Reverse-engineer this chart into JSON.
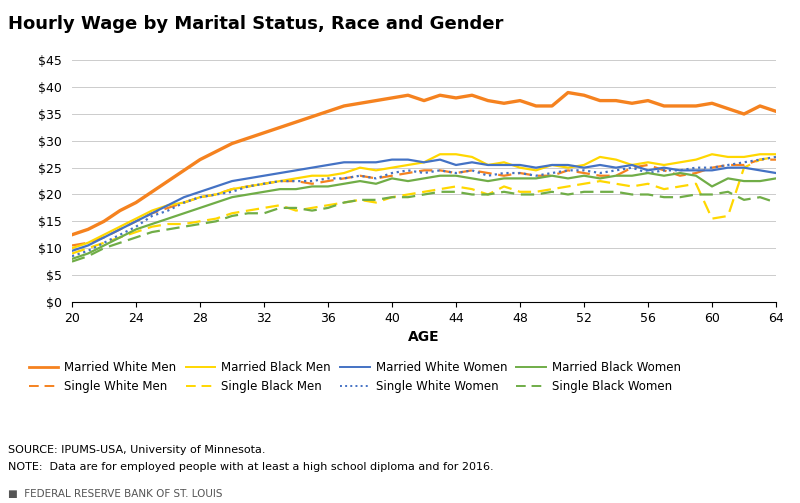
{
  "title": "Hourly Wage by Marital Status, Race and Gender",
  "xlabel": "AGE",
  "ages": [
    20,
    21,
    22,
    23,
    24,
    25,
    26,
    27,
    28,
    29,
    30,
    31,
    32,
    33,
    34,
    35,
    36,
    37,
    38,
    39,
    40,
    41,
    42,
    43,
    44,
    45,
    46,
    47,
    48,
    49,
    50,
    51,
    52,
    53,
    54,
    55,
    56,
    57,
    58,
    59,
    60,
    61,
    62,
    63,
    64
  ],
  "married_white_men": [
    12.5,
    13.5,
    15.0,
    17.0,
    18.5,
    20.5,
    22.5,
    24.5,
    26.5,
    28.0,
    29.5,
    30.5,
    31.5,
    32.5,
    33.5,
    34.5,
    35.5,
    36.5,
    37.0,
    37.5,
    38.0,
    38.5,
    37.5,
    38.5,
    38.0,
    38.5,
    37.5,
    37.0,
    37.5,
    36.5,
    36.5,
    39.0,
    38.5,
    37.5,
    37.5,
    37.0,
    37.5,
    36.5,
    36.5,
    36.5,
    37.0,
    36.0,
    35.0,
    36.5,
    35.5
  ],
  "single_white_men": [
    10.5,
    11.0,
    12.0,
    13.5,
    15.0,
    16.5,
    17.5,
    18.5,
    19.5,
    20.0,
    21.0,
    21.5,
    22.0,
    22.5,
    22.5,
    22.0,
    22.5,
    23.0,
    23.5,
    23.0,
    23.5,
    24.0,
    24.5,
    24.5,
    24.0,
    24.5,
    24.0,
    23.5,
    24.0,
    23.5,
    23.5,
    24.5,
    24.0,
    23.5,
    23.5,
    25.0,
    25.5,
    24.5,
    23.5,
    24.0,
    25.0,
    25.5,
    25.5,
    26.5,
    26.5
  ],
  "married_black_men": [
    10.0,
    11.0,
    12.5,
    14.0,
    15.5,
    17.0,
    18.0,
    18.5,
    19.5,
    20.0,
    21.0,
    21.5,
    22.0,
    22.5,
    23.0,
    23.5,
    23.5,
    24.0,
    25.0,
    24.5,
    25.0,
    25.5,
    26.0,
    27.5,
    27.5,
    27.0,
    25.5,
    26.0,
    25.0,
    24.5,
    25.5,
    25.0,
    25.5,
    27.0,
    26.5,
    25.5,
    26.0,
    25.5,
    26.0,
    26.5,
    27.5,
    27.0,
    27.0,
    27.5,
    27.5
  ],
  "single_black_men": [
    9.0,
    10.0,
    11.0,
    12.0,
    13.0,
    14.0,
    14.5,
    14.5,
    15.0,
    15.5,
    16.5,
    17.0,
    17.5,
    18.0,
    17.0,
    17.5,
    18.0,
    18.5,
    19.0,
    18.5,
    19.5,
    20.0,
    20.5,
    21.0,
    21.5,
    21.0,
    20.0,
    21.5,
    20.5,
    20.5,
    21.0,
    21.5,
    22.0,
    22.5,
    22.0,
    21.5,
    22.0,
    21.0,
    21.5,
    22.0,
    15.5,
    16.0,
    25.0,
    26.5,
    27.0
  ],
  "married_white_women": [
    9.5,
    10.5,
    12.0,
    13.5,
    15.0,
    16.5,
    18.0,
    19.5,
    20.5,
    21.5,
    22.5,
    23.0,
    23.5,
    24.0,
    24.5,
    25.0,
    25.5,
    26.0,
    26.0,
    26.0,
    26.5,
    26.5,
    26.0,
    26.5,
    25.5,
    26.0,
    25.5,
    25.5,
    25.5,
    25.0,
    25.5,
    25.5,
    25.0,
    25.5,
    25.0,
    25.5,
    24.5,
    25.0,
    24.5,
    24.5,
    24.5,
    25.0,
    25.0,
    24.5,
    24.0
  ],
  "single_white_women": [
    8.5,
    9.5,
    11.0,
    12.5,
    14.0,
    16.0,
    17.0,
    18.5,
    19.5,
    20.0,
    20.5,
    21.5,
    22.0,
    22.5,
    22.5,
    22.5,
    23.0,
    23.0,
    23.5,
    23.0,
    24.0,
    24.5,
    24.0,
    24.5,
    24.0,
    24.5,
    23.5,
    24.0,
    24.0,
    23.5,
    24.0,
    24.5,
    24.5,
    24.0,
    24.5,
    25.0,
    24.0,
    24.5,
    24.5,
    25.0,
    25.0,
    25.5,
    26.0,
    26.5,
    27.0
  ],
  "married_black_women": [
    8.0,
    9.0,
    10.5,
    12.0,
    13.5,
    14.5,
    15.5,
    16.5,
    17.5,
    18.5,
    19.5,
    20.0,
    20.5,
    21.0,
    21.0,
    21.5,
    21.5,
    22.0,
    22.5,
    22.0,
    23.0,
    22.5,
    23.0,
    23.5,
    23.5,
    23.0,
    22.5,
    23.0,
    23.0,
    23.0,
    23.5,
    23.0,
    23.5,
    23.0,
    23.5,
    23.5,
    24.0,
    23.5,
    24.0,
    23.5,
    21.5,
    23.0,
    22.5,
    22.5,
    23.0
  ],
  "single_black_women": [
    7.5,
    8.5,
    10.0,
    11.0,
    12.0,
    13.0,
    13.5,
    14.0,
    14.5,
    15.0,
    16.0,
    16.5,
    16.5,
    17.5,
    17.5,
    17.0,
    17.5,
    18.5,
    19.0,
    19.0,
    19.5,
    19.5,
    20.0,
    20.5,
    20.5,
    20.0,
    20.0,
    20.5,
    20.0,
    20.0,
    20.5,
    20.0,
    20.5,
    20.5,
    20.5,
    20.0,
    20.0,
    19.5,
    19.5,
    20.0,
    20.0,
    20.5,
    19.0,
    19.5,
    18.5
  ],
  "ylim": [
    0,
    45
  ],
  "yticks": [
    0,
    5,
    10,
    15,
    20,
    25,
    30,
    35,
    40,
    45
  ],
  "xticks": [
    20,
    24,
    28,
    32,
    36,
    40,
    44,
    48,
    52,
    56,
    60,
    64
  ],
  "color_orange": "#F5821F",
  "color_blue": "#4472C4",
  "color_yellow": "#FFD700",
  "color_green": "#70AD47",
  "source_text": "SOURCE: IPUMS-USA, University of Minnesota.",
  "note_text": "NOTE:  Data are for employed people with at least a high school diploma and for 2016.",
  "footer_text": "FEDERAL RESERVE BANK OF ST. LOUIS"
}
